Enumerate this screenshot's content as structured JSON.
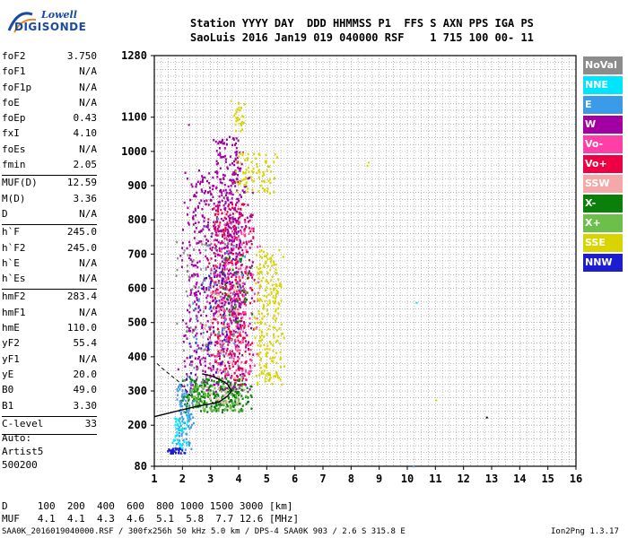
{
  "logo": {
    "brand": "Lowell",
    "sub": "DIGISONDE"
  },
  "header": {
    "line1": "Station YYYY DAY  DDD HHMMSS P1  FFS S AXN PPS IGA PS",
    "line2": "SaoLuis 2016 Jan19 019 040000 RSF    1 715 100 00- 11"
  },
  "params": [
    [
      [
        "foF2",
        "3.750"
      ],
      [
        "foF1",
        "N/A"
      ],
      [
        "foF1p",
        "N/A"
      ],
      [
        "foE",
        "N/A"
      ],
      [
        "foEp",
        "0.43"
      ],
      [
        "fxI",
        "4.10"
      ],
      [
        "foEs",
        "N/A"
      ],
      [
        "fmin",
        "2.05"
      ]
    ],
    [
      [
        "MUF(D)",
        "12.59"
      ],
      [
        "M(D)",
        "3.36"
      ],
      [
        "D",
        "N/A"
      ]
    ],
    [
      [
        "h`F",
        "245.0"
      ],
      [
        "h`F2",
        "245.0"
      ],
      [
        "h`E",
        "N/A"
      ],
      [
        "h`Es",
        "N/A"
      ]
    ],
    [
      [
        "hmF2",
        "283.4"
      ],
      [
        "hmF1",
        "N/A"
      ],
      [
        "hmE",
        "110.0"
      ],
      [
        "yF2",
        "55.4"
      ],
      [
        "yF1",
        "N/A"
      ],
      [
        "yE",
        "20.0"
      ],
      [
        "B0",
        "49.0"
      ],
      [
        "B1",
        "3.30"
      ]
    ],
    [
      [
        "C-level",
        "33"
      ]
    ]
  ],
  "auto": {
    "l1": "Auto:",
    "l2": "Artist5",
    "l3": "500200"
  },
  "legend": [
    {
      "label": "NoVal",
      "color": "#8c8c8c"
    },
    {
      "label": "NNE",
      "color": "#00e5ff"
    },
    {
      "label": "E",
      "color": "#3c9be8"
    },
    {
      "label": "W",
      "color": "#a300a3"
    },
    {
      "label": "Vo-",
      "color": "#ff3fa8"
    },
    {
      "label": "Vo+",
      "color": "#ee0044"
    },
    {
      "label": "SSW",
      "color": "#f5a8a8"
    },
    {
      "label": "X-",
      "color": "#0a7f0a"
    },
    {
      "label": "X+",
      "color": "#6cbf4a"
    },
    {
      "label": "SSE",
      "color": "#d9d400"
    },
    {
      "label": "NNW",
      "color": "#1c1cd0"
    }
  ],
  "mufrow": {
    "d": "D     100  200  400  600  800 1000 1500 3000 [km]",
    "m": "MUF   4.1  4.1  4.3  4.6  5.1  5.8  7.7 12.6 [MHz]"
  },
  "footer": {
    "left": "SAA0K_2016019040000.RSF / 300fx256h 50 kHz 5.0 km / DPS-4 SAA0K 903 / 2.6 S 315.8 E",
    "right": "Ion2Png 1.3.17"
  },
  "chart_data": {
    "type": "scatter",
    "xlabel": "",
    "ylabel": "",
    "x_ticks": [
      1,
      2,
      3,
      4,
      5,
      6,
      7,
      8,
      9,
      10,
      11,
      12,
      13,
      14,
      15,
      16
    ],
    "y_ticks": [
      80,
      200,
      300,
      400,
      500,
      600,
      700,
      800,
      900,
      1000,
      1100,
      1280
    ],
    "xlim": [
      1,
      16
    ],
    "ylim": [
      80,
      1280
    ],
    "grid": true,
    "legend_position": "right",
    "profile": {
      "x": [
        1.0,
        1.5,
        2.0,
        2.5,
        3.0,
        3.3,
        3.6,
        3.75,
        3.6,
        3.3,
        3.0,
        2.7
      ],
      "y": [
        225,
        235,
        245,
        255,
        262,
        268,
        285,
        300,
        320,
        335,
        345,
        350
      ]
    },
    "trace_dashed": {
      "x": [
        1.1,
        1.3,
        1.6,
        1.9,
        2.1,
        2.3
      ],
      "y": [
        380,
        365,
        345,
        325,
        305,
        285
      ]
    },
    "series": [
      {
        "name": "W",
        "color": "#a300a3",
        "clouds": [
          {
            "x0": 1.8,
            "x1": 4.6,
            "y0": 300,
            "y1": 950,
            "n": 650
          },
          {
            "x0": 3.0,
            "x1": 4.2,
            "y0": 500,
            "y1": 1050,
            "n": 250
          }
        ]
      },
      {
        "name": "Vo+",
        "color": "#ee0044",
        "clouds": [
          {
            "x0": 2.8,
            "x1": 4.6,
            "y0": 320,
            "y1": 850,
            "n": 300
          }
        ]
      },
      {
        "name": "Vo-",
        "color": "#ff3fa8",
        "clouds": [
          {
            "x0": 2.8,
            "x1": 4.8,
            "y0": 350,
            "y1": 800,
            "n": 170
          }
        ]
      },
      {
        "name": "SSE",
        "color": "#d9d400",
        "clouds": [
          {
            "x0": 4.5,
            "x1": 5.6,
            "y0": 320,
            "y1": 720,
            "n": 220
          },
          {
            "x0": 3.8,
            "x1": 5.4,
            "y0": 880,
            "y1": 1000,
            "n": 80
          },
          {
            "x0": 3.8,
            "x1": 4.2,
            "y0": 1060,
            "y1": 1150,
            "n": 25
          }
        ]
      },
      {
        "name": "X-",
        "color": "#0a7f0a",
        "clouds": [
          {
            "x0": 1.8,
            "x1": 4.5,
            "y0": 240,
            "y1": 340,
            "n": 240
          },
          {
            "x0": 3.3,
            "x1": 4.5,
            "y0": 500,
            "y1": 700,
            "n": 40
          }
        ]
      },
      {
        "name": "X+",
        "color": "#6cbf4a",
        "clouds": [
          {
            "x0": 2.0,
            "x1": 4.3,
            "y0": 245,
            "y1": 320,
            "n": 90
          }
        ]
      },
      {
        "name": "E",
        "color": "#3c9be8",
        "clouds": [
          {
            "x0": 1.7,
            "x1": 2.4,
            "y0": 130,
            "y1": 330,
            "n": 90
          },
          {
            "x0": 2.0,
            "x1": 4.5,
            "y0": 400,
            "y1": 850,
            "n": 40
          }
        ]
      },
      {
        "name": "NNE",
        "color": "#00e5ff",
        "clouds": [
          {
            "x0": 1.6,
            "x1": 2.2,
            "y0": 130,
            "y1": 230,
            "n": 40
          }
        ]
      },
      {
        "name": "NNW",
        "color": "#1c1cd0",
        "clouds": [
          {
            "x0": 1.4,
            "x1": 2.1,
            "y0": 120,
            "y1": 135,
            "n": 35
          },
          {
            "x0": 2.0,
            "x1": 4.2,
            "y0": 330,
            "y1": 700,
            "n": 45
          }
        ]
      },
      {
        "name": "SSW",
        "color": "#f5a8a8",
        "clouds": [
          {
            "x0": 2.5,
            "x1": 4.2,
            "y0": 260,
            "y1": 620,
            "n": 60
          }
        ]
      },
      {
        "name": "NoVal",
        "color": "#8c8c8c",
        "clouds": [
          {
            "x0": 1.5,
            "x1": 4.4,
            "y0": 260,
            "y1": 760,
            "n": 90
          }
        ]
      }
    ],
    "isolated": [
      {
        "x": 8.6,
        "y": 970,
        "color": "#d9d400"
      },
      {
        "x": 8.55,
        "y": 960,
        "color": "#d9d400"
      },
      {
        "x": 10.3,
        "y": 560,
        "color": "#00e5ff"
      },
      {
        "x": 11.0,
        "y": 275,
        "color": "#d9d400"
      },
      {
        "x": 12.8,
        "y": 225,
        "color": "#000000"
      },
      {
        "x": 10.2,
        "y": 82,
        "color": "#3c9be8"
      },
      {
        "x": 3.7,
        "y": 1150,
        "color": "#d9d400"
      },
      {
        "x": 2.2,
        "y": 1080,
        "color": "#a300a3"
      }
    ]
  }
}
